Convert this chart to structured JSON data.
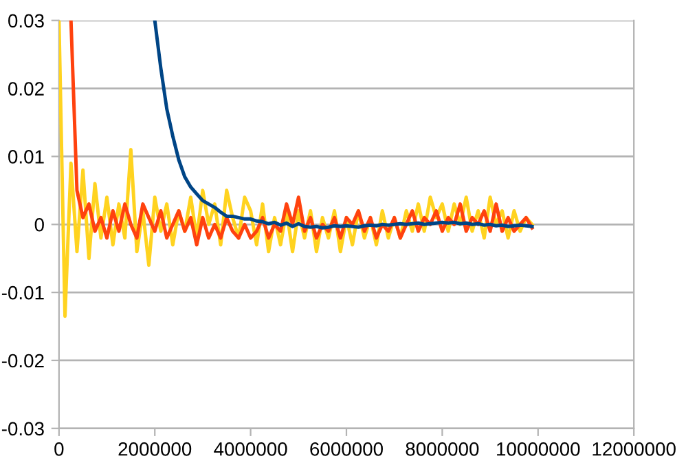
{
  "chart_data": {
    "type": "line",
    "x": [
      0,
      125000,
      250000,
      375000,
      500000,
      625000,
      750000,
      875000,
      1000000,
      1125000,
      1250000,
      1375000,
      1500000,
      1625000,
      1750000,
      1875000,
      2000000,
      2125000,
      2250000,
      2375000,
      2500000,
      2625000,
      2750000,
      2875000,
      3000000,
      3125000,
      3250000,
      3375000,
      3500000,
      3625000,
      3750000,
      3875000,
      4000000,
      4125000,
      4250000,
      4375000,
      4500000,
      4625000,
      4750000,
      4875000,
      5000000,
      5125000,
      5250000,
      5375000,
      5500000,
      5625000,
      5750000,
      5875000,
      6000000,
      6125000,
      6250000,
      6375000,
      6500000,
      6625000,
      6750000,
      6875000,
      7000000,
      7125000,
      7250000,
      7375000,
      7500000,
      7625000,
      7750000,
      7875000,
      8000000,
      8125000,
      8250000,
      8375000,
      8500000,
      8625000,
      8750000,
      8875000,
      9000000,
      9125000,
      9250000,
      9375000,
      9500000,
      9625000,
      9750000,
      9875000
    ],
    "series": [
      {
        "color": "#ffd320",
        "values": [
          0.03,
          -0.0135,
          0.009,
          -0.004,
          0.008,
          -0.005,
          0.006,
          -0.002,
          0.004,
          -0.003,
          0.003,
          -0.002,
          0.011,
          -0.004,
          0.002,
          -0.006,
          0.004,
          -0.001,
          0.003,
          -0.003,
          0.002,
          -0.001,
          0.004,
          -0.002,
          0.005,
          0.0,
          0.003,
          -0.003,
          0.005,
          0.001,
          -0.002,
          0.004,
          0.002,
          -0.003,
          0.003,
          -0.004,
          0.001,
          -0.003,
          0.002,
          -0.004,
          0.002,
          -0.002,
          0.002,
          -0.004,
          0.001,
          -0.002,
          0.002,
          -0.004,
          0.001,
          -0.003,
          0.002,
          -0.002,
          0.001,
          -0.003,
          0.002,
          -0.002,
          0.001,
          -0.002,
          0.002,
          -0.001,
          0.003,
          -0.001,
          0.004,
          0.001,
          0.003,
          -0.001,
          0.003,
          0.0,
          0.004,
          -0.001,
          0.002,
          -0.002,
          0.004,
          0.0,
          0.002,
          -0.002,
          0.002,
          -0.001,
          0.001,
          0.0
        ]
      },
      {
        "color": "#ff420e",
        "values": [
          null,
          null,
          0.03,
          0.005,
          0.001,
          0.003,
          -0.001,
          0.001,
          -0.002,
          0.002,
          -0.001,
          0.003,
          0.0,
          -0.002,
          0.003,
          0.001,
          -0.001,
          0.002,
          -0.002,
          0.0,
          0.002,
          -0.001,
          0.001,
          -0.003,
          0.001,
          -0.002,
          0.0,
          -0.002,
          0.001,
          -0.001,
          -0.002,
          0.0,
          -0.002,
          -0.001,
          0.001,
          -0.002,
          0.0,
          -0.001,
          0.003,
          0.0,
          0.004,
          -0.001,
          0.001,
          -0.002,
          0.0,
          -0.001,
          0.001,
          -0.002,
          0.001,
          0.0,
          0.002,
          -0.001,
          0.001,
          -0.002,
          0.0,
          -0.001,
          0.001,
          -0.002,
          0.0,
          0.002,
          -0.001,
          0.001,
          0.0,
          0.002,
          -0.001,
          0.001,
          0.0,
          0.003,
          -0.001,
          0.001,
          0.0,
          0.002,
          -0.001,
          0.003,
          -0.001,
          0.001,
          -0.001,
          0.0,
          0.001,
          -0.0005
        ]
      },
      {
        "color": "#004586",
        "values": [
          null,
          null,
          null,
          null,
          null,
          null,
          null,
          null,
          null,
          null,
          null,
          null,
          null,
          null,
          null,
          null,
          0.03,
          0.023,
          0.017,
          0.013,
          0.0095,
          0.007,
          0.0055,
          0.0045,
          0.0035,
          0.003,
          0.0025,
          0.0018,
          0.0012,
          0.0012,
          0.001,
          0.0008,
          0.0008,
          0.0005,
          0.0004,
          0.0001,
          0.0003,
          -0.0001,
          0.0002,
          -0.0003,
          0.0001,
          -0.0003,
          -0.0004,
          -0.0003,
          -0.0005,
          -0.0004,
          -0.0002,
          -0.0003,
          -0.0002,
          -0.0003,
          -0.0004,
          -0.0002,
          -0.0001,
          -0.0002,
          0.0,
          -0.0001,
          0.0,
          0.0001,
          0.0,
          0.0001,
          0.0002,
          0.0,
          0.0001,
          0.0002,
          0.0003,
          0.0002,
          0.0003,
          0.0001,
          0.0002,
          0.0,
          0.0001,
          -0.0001,
          0.0,
          -0.0002,
          -0.0001,
          -0.0003,
          -0.0002,
          -0.0001,
          -0.0002,
          -0.0003
        ]
      }
    ],
    "xlim": [
      0,
      12000000
    ],
    "xticks": [
      0,
      2000000,
      4000000,
      6000000,
      8000000,
      10000000,
      12000000
    ],
    "ylim": [
      -0.03,
      0.03
    ],
    "yticks": [
      -0.03,
      -0.02,
      -0.01,
      0,
      0.01,
      0.02,
      0.03
    ],
    "grid": "y",
    "line_style": "solid"
  }
}
